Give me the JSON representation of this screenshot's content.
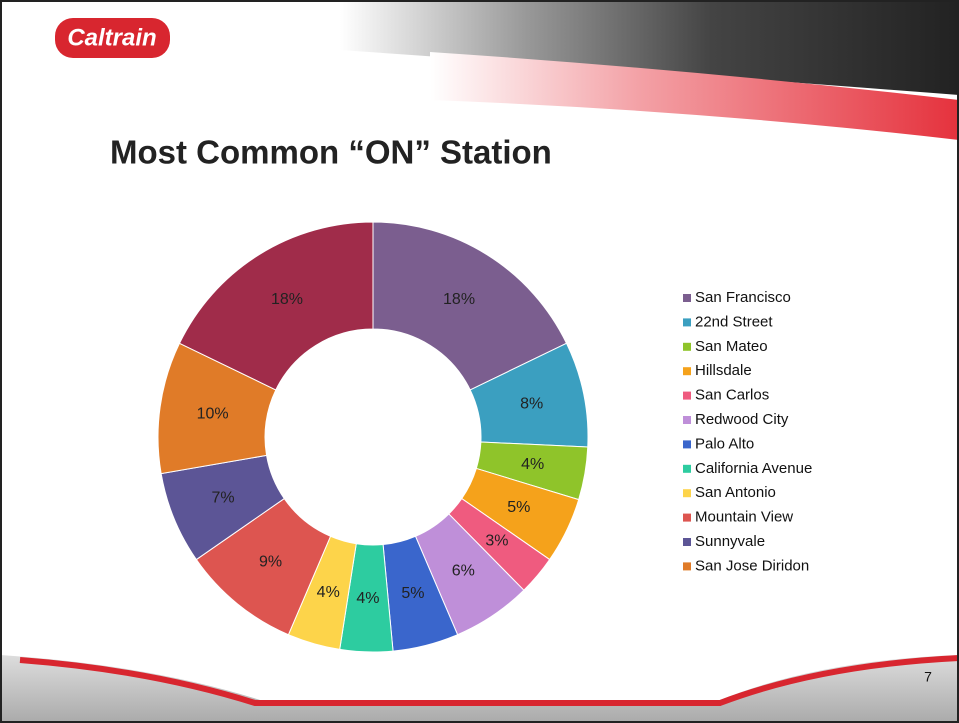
{
  "logo": "Caltrain",
  "page_number": "7",
  "chart_data": {
    "type": "donut",
    "title": "Most Common “ON” Station",
    "categories": [
      "San Francisco",
      "22nd Street",
      "San Mateo",
      "Hillsdale",
      "San Carlos",
      "Redwood City",
      "Palo Alto",
      "California Avenue",
      "San Antonio",
      "Mountain View",
      "Sunnyvale",
      "San Jose Diridon",
      null
    ],
    "values": [
      18,
      8,
      4,
      5,
      3,
      6,
      5,
      4,
      4,
      9,
      7,
      10,
      18
    ],
    "value_labels": [
      "18%",
      "8%",
      "4%",
      "5%",
      "3%",
      "6%",
      "5%",
      "4%",
      "4%",
      "9%",
      "7%",
      "10%",
      "18%"
    ],
    "colors": [
      "#7b5e8f",
      "#3b9fc0",
      "#8fc42a",
      "#f5a21b",
      "#ef5b7f",
      "#bf8fd9",
      "#3a66cc",
      "#2dcca0",
      "#fdd44a",
      "#dd5550",
      "#5c5596",
      "#e07b28",
      "#a02c4a"
    ],
    "legend": "right"
  }
}
